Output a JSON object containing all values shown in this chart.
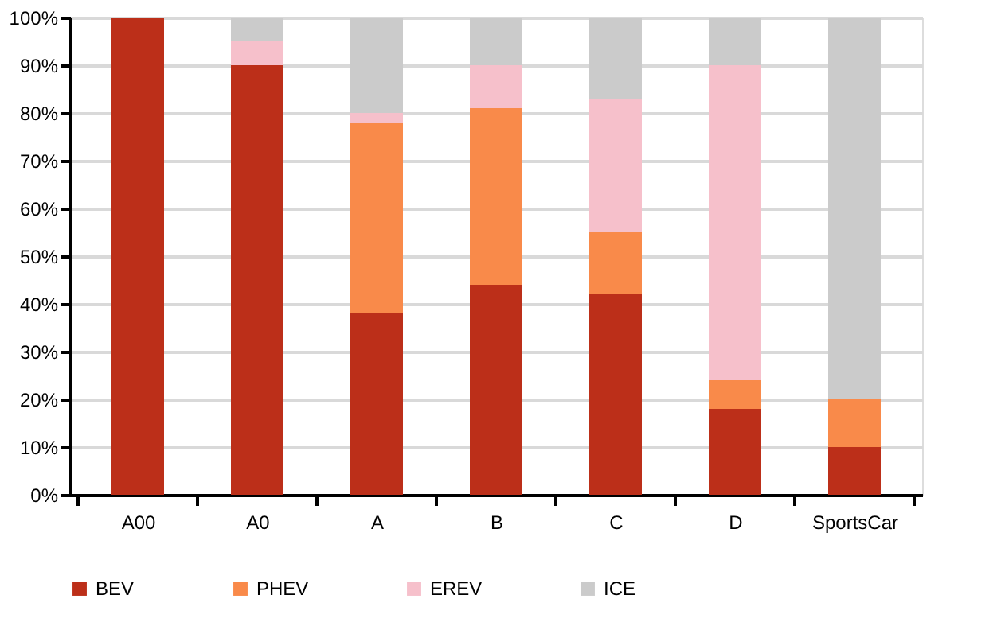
{
  "chart_data": {
    "type": "bar",
    "stacked": true,
    "categories": [
      "A00",
      "A0",
      "A",
      "B",
      "C",
      "D",
      "SportsCar"
    ],
    "series": [
      {
        "name": "BEV",
        "color": "#bc2f19",
        "values": [
          100,
          90,
          38,
          44,
          42,
          18,
          10
        ]
      },
      {
        "name": "PHEV",
        "color": "#f98a4a",
        "values": [
          0,
          0,
          40,
          37,
          13,
          6,
          10
        ]
      },
      {
        "name": "EREV",
        "color": "#f6c0cb",
        "values": [
          0,
          5,
          2,
          9,
          28,
          66,
          0
        ]
      },
      {
        "name": "ICE",
        "color": "#cbcbcb",
        "values": [
          0,
          5,
          20,
          10,
          17,
          10,
          80
        ]
      }
    ],
    "ylim": [
      0,
      100
    ],
    "yticks": [
      {
        "value": 0,
        "label": "0%"
      },
      {
        "value": 10,
        "label": "10%"
      },
      {
        "value": 20,
        "label": "20%"
      },
      {
        "value": 30,
        "label": "30%"
      },
      {
        "value": 40,
        "label": "40%"
      },
      {
        "value": 50,
        "label": "50%"
      },
      {
        "value": 60,
        "label": "60%"
      },
      {
        "value": 70,
        "label": "70%"
      },
      {
        "value": 80,
        "label": "80%"
      },
      {
        "value": 90,
        "label": "90%"
      },
      {
        "value": 100,
        "label": "100%"
      }
    ],
    "grid": "y",
    "legend": "bottom"
  }
}
